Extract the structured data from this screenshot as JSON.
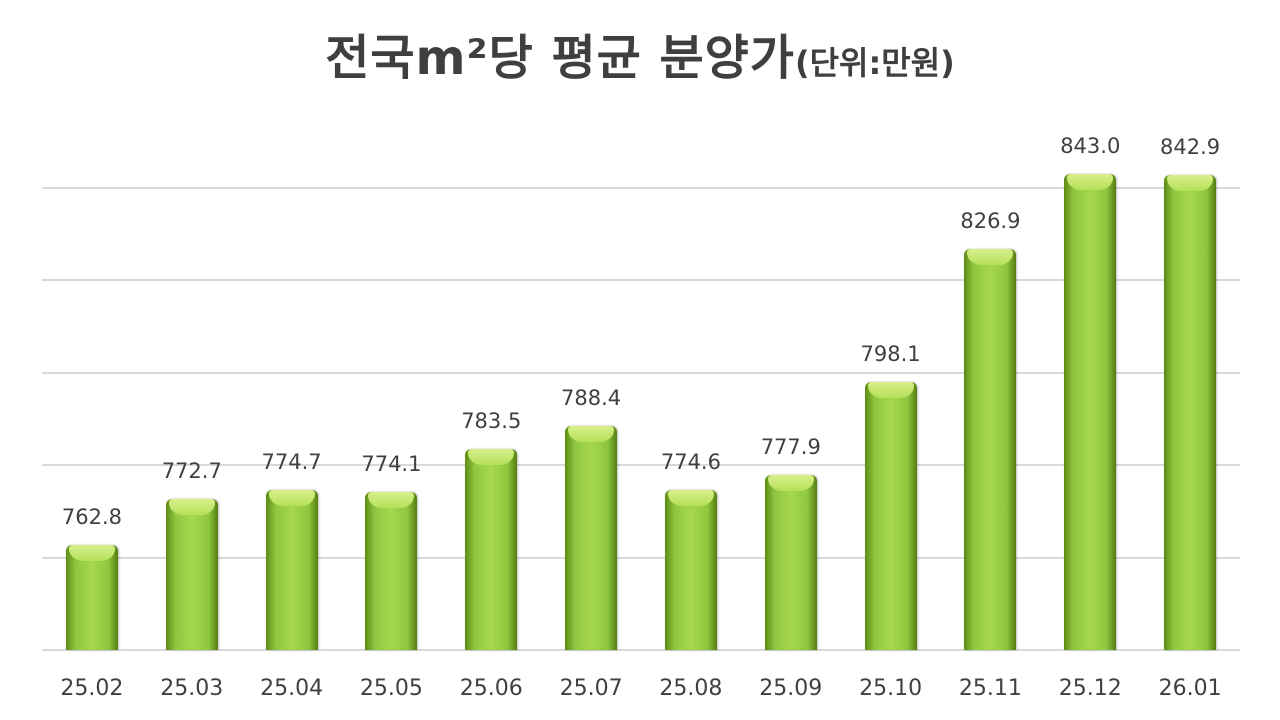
{
  "chart_data": {
    "type": "bar",
    "title": "전국m²당 평균 분양가",
    "unit_label": "(단위:만원)",
    "xlabel": "",
    "ylabel": "",
    "categories": [
      "25.02",
      "25.03",
      "25.04",
      "25.05",
      "25.06",
      "25.07",
      "25.08",
      "25.09",
      "25.10",
      "25.11",
      "25.12",
      "26.01"
    ],
    "values": [
      762.8,
      772.7,
      774.7,
      774.1,
      783.5,
      788.4,
      774.6,
      777.9,
      798.1,
      826.9,
      843.0,
      842.9
    ],
    "value_labels": [
      "762.8",
      "772.7",
      "774.7",
      "774.1",
      "783.5",
      "788.4",
      "774.6",
      "777.9",
      "798.1",
      "826.9",
      "843.0",
      "842.9"
    ],
    "ylim": [
      740,
      850
    ],
    "gridlines": [
      740,
      760,
      780,
      800,
      820,
      840
    ],
    "grid": true,
    "y_axis_visible": false,
    "legend": null,
    "bar_color": "#8dc63f"
  }
}
